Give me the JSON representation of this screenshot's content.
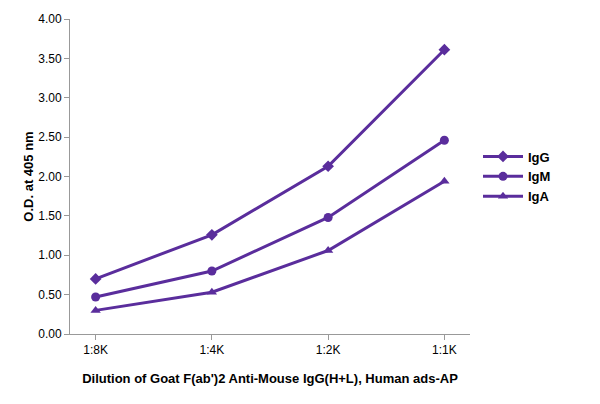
{
  "chart_data": {
    "type": "line",
    "x_label": "Dilution of Goat F(ab')2 Anti-Mouse IgG(H+L), Human ads-AP",
    "y_label": "O.D. at 405 nm",
    "categories": [
      "1:8K",
      "1:4K",
      "1:2K",
      "1:1K"
    ],
    "series": [
      {
        "name": "IgG",
        "color": "#5a2d9c",
        "marker": "diamond",
        "values": [
          0.7,
          1.26,
          2.13,
          3.61
        ]
      },
      {
        "name": "IgM",
        "color": "#5a2d9c",
        "marker": "circle",
        "values": [
          0.47,
          0.8,
          1.48,
          2.46
        ]
      },
      {
        "name": "IgA",
        "color": "#5a2d9c",
        "marker": "triangle-up",
        "values": [
          0.3,
          0.53,
          1.06,
          1.94
        ]
      }
    ],
    "ylim": [
      0,
      4
    ],
    "yticks": [
      {
        "value": 0,
        "label": "0.00"
      },
      {
        "value": 0.5,
        "label": "0.50"
      },
      {
        "value": 1,
        "label": "1.00"
      },
      {
        "value": 1.5,
        "label": "1.50"
      },
      {
        "value": 2,
        "label": "2.00"
      },
      {
        "value": 2.5,
        "label": "2.50"
      },
      {
        "value": 3,
        "label": "3.00"
      },
      {
        "value": 3.5,
        "label": "3.50"
      },
      {
        "value": 4,
        "label": "4.00"
      }
    ],
    "grid": false,
    "legend": "right"
  }
}
